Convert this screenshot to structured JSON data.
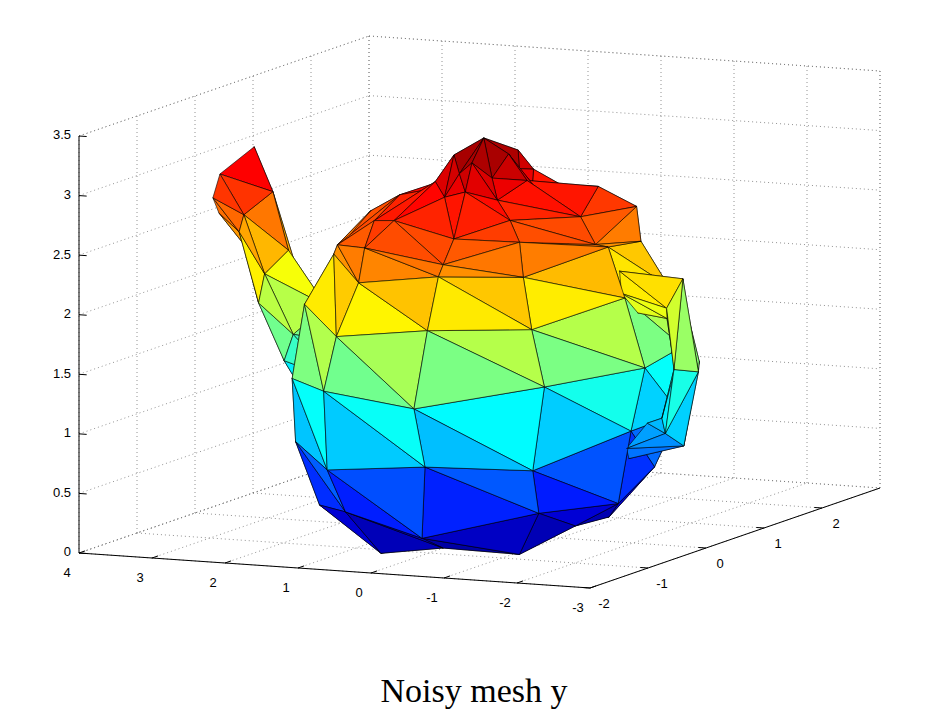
{
  "chart_data": {
    "type": "trisurf",
    "title": "Noisy mesh y",
    "xlim": [
      -3,
      4
    ],
    "ylim": [
      -2,
      3
    ],
    "zlim": [
      0,
      3.5
    ],
    "xticks": [
      -3,
      -2,
      -1,
      0,
      1,
      2,
      3,
      4
    ],
    "yticks": [
      -2,
      -1,
      0,
      1,
      2
    ],
    "zticks": [
      0,
      0.5,
      1,
      1.5,
      2,
      2.5,
      3,
      3.5
    ],
    "grid": true,
    "color_range": [
      0,
      3.32
    ],
    "surfaces": [
      {
        "rings": [
          [
            [
              0.03,
              0.02,
              0.0
            ]
          ],
          [
            [
              1.35,
              0.05,
              0.08
            ],
            [
              1.02,
              0.8,
              0.02
            ],
            [
              0.45,
              1.2,
              0.1
            ],
            [
              -0.38,
              1.3,
              0.0
            ],
            [
              -1.1,
              0.72,
              0.06
            ],
            [
              -1.25,
              -0.05,
              0.12
            ],
            [
              -1.08,
              -0.8,
              0.0
            ],
            [
              -0.35,
              -1.2,
              0.09
            ],
            [
              0.42,
              -1.3,
              0.03
            ],
            [
              1.0,
              -0.72,
              0.0
            ]
          ],
          [
            [
              1.85,
              -0.05,
              0.3
            ],
            [
              1.4,
              1.12,
              0.42
            ],
            [
              0.6,
              1.66,
              0.28
            ],
            [
              -0.52,
              1.78,
              0.38
            ],
            [
              -1.5,
              1.0,
              0.45
            ],
            [
              -1.75,
              0.06,
              0.31
            ],
            [
              -1.52,
              -1.02,
              0.4
            ],
            [
              -0.5,
              -1.75,
              0.27
            ],
            [
              0.62,
              -1.66,
              0.43
            ],
            [
              1.42,
              -1.1,
              0.36
            ]
          ],
          [
            [
              2.1,
              0.04,
              0.9
            ],
            [
              1.62,
              1.25,
              0.8
            ],
            [
              0.68,
              1.9,
              0.92
            ],
            [
              -0.6,
              2.0,
              0.82
            ],
            [
              -1.7,
              1.18,
              0.88
            ],
            [
              -2.02,
              -0.06,
              0.95
            ],
            [
              -1.62,
              -1.25,
              0.8
            ],
            [
              -0.66,
              -1.9,
              0.9
            ],
            [
              0.6,
              -2.0,
              0.84
            ],
            [
              1.7,
              -1.16,
              0.89
            ]
          ],
          [
            [
              2.05,
              -0.04,
              1.5
            ],
            [
              1.74,
              1.2,
              1.4
            ],
            [
              0.62,
              2.05,
              1.48
            ],
            [
              -0.68,
              1.96,
              1.52
            ],
            [
              -1.66,
              1.28,
              1.42
            ],
            [
              -2.14,
              0.03,
              1.47
            ],
            [
              -1.74,
              -1.2,
              1.5
            ],
            [
              -0.62,
              -2.04,
              1.41
            ],
            [
              0.68,
              -1.96,
              1.49
            ],
            [
              1.66,
              -1.27,
              1.44
            ]
          ],
          [
            [
              1.98,
              0.05,
              1.96
            ],
            [
              1.55,
              1.18,
              2.05
            ],
            [
              0.63,
              1.82,
              1.98
            ],
            [
              -0.57,
              1.88,
              2.04
            ],
            [
              -1.6,
              1.12,
              1.95
            ],
            [
              -1.92,
              -0.04,
              2.06
            ],
            [
              -1.55,
              -1.18,
              1.97
            ],
            [
              -0.63,
              -1.82,
              2.03
            ],
            [
              0.57,
              -1.88,
              1.94
            ],
            [
              1.61,
              -1.12,
              2.04
            ]
          ],
          [
            [
              1.7,
              -0.04,
              2.36
            ],
            [
              1.3,
              1.02,
              2.45
            ],
            [
              0.55,
              1.52,
              2.38
            ],
            [
              -0.48,
              1.62,
              2.44
            ],
            [
              -1.37,
              0.93,
              2.35
            ],
            [
              -1.62,
              0.05,
              2.46
            ],
            [
              -1.3,
              -1.01,
              2.37
            ],
            [
              -0.55,
              -1.53,
              2.43
            ],
            [
              0.48,
              -1.61,
              2.35
            ],
            [
              1.36,
              -0.93,
              2.44
            ]
          ],
          [
            [
              1.66,
              0.08,
              2.62
            ],
            [
              1.22,
              1.0,
              2.5
            ],
            [
              0.56,
              1.46,
              2.66
            ],
            [
              -0.42,
              1.58,
              2.52
            ],
            [
              -1.35,
              0.88,
              2.65
            ],
            [
              -1.55,
              -0.08,
              2.5
            ],
            [
              -1.24,
              -1.0,
              2.66
            ],
            [
              -0.56,
              -1.46,
              2.52
            ],
            [
              0.42,
              -1.58,
              2.64
            ],
            [
              1.35,
              -0.88,
              2.51
            ]
          ],
          [
            [
              1.15,
              -0.06,
              2.8
            ],
            [
              1.02,
              0.66,
              2.68
            ],
            [
              0.32,
              1.2,
              2.78
            ],
            [
              -0.42,
              1.1,
              2.66
            ],
            [
              -0.92,
              0.76,
              2.82
            ],
            [
              -1.25,
              0.04,
              2.7
            ],
            [
              -0.92,
              -0.76,
              2.79
            ],
            [
              -0.42,
              -1.1,
              2.67
            ],
            [
              0.32,
              -1.2,
              2.81
            ],
            [
              1.02,
              -0.66,
              2.69
            ]
          ],
          [
            [
              0.6,
              0.03,
              2.88
            ],
            [
              0.4,
              0.36,
              2.98
            ],
            [
              0.2,
              0.48,
              2.86
            ],
            [
              -0.2,
              0.55,
              2.97
            ],
            [
              -0.4,
              0.28,
              2.9
            ],
            [
              -0.58,
              -0.04,
              2.99
            ],
            [
              -0.42,
              -0.35,
              2.87
            ],
            [
              -0.14,
              -0.55,
              2.96
            ],
            [
              0.2,
              -0.48,
              2.89
            ],
            [
              0.47,
              -0.3,
              2.98
            ]
          ],
          [
            [
              0.4,
              0.02,
              3.05
            ],
            [
              0.24,
              0.25,
              3.18
            ],
            [
              0.14,
              0.3,
              3.02
            ],
            [
              -0.14,
              0.36,
              3.16
            ],
            [
              -0.3,
              0.18,
              3.04
            ],
            [
              -0.32,
              -0.03,
              3.2
            ],
            [
              -0.26,
              -0.24,
              3.03
            ],
            [
              -0.08,
              -0.36,
              3.17
            ],
            [
              0.14,
              -0.3,
              3.06
            ],
            [
              0.31,
              -0.18,
              3.19
            ]
          ],
          [
            [
              0.02,
              -0.03,
              3.32
            ]
          ]
        ]
      },
      {
        "rings": [
          [
            [
              1.92,
              0.48,
              1.08
            ],
            [
              1.6,
              0.12,
              1.47
            ],
            [
              1.76,
              -0.4,
              1.28
            ],
            [
              2.03,
              -0.33,
              0.92
            ],
            [
              2.2,
              0.17,
              0.74
            ]
          ],
          [
            [
              2.55,
              0.38,
              1.46
            ],
            [
              2.27,
              0.08,
              1.8
            ],
            [
              2.4,
              -0.32,
              1.62
            ],
            [
              2.58,
              -0.25,
              1.38
            ],
            [
              2.74,
              0.14,
              1.2
            ]
          ],
          [
            [
              2.86,
              0.32,
              2.04
            ],
            [
              2.76,
              0.05,
              2.25
            ],
            [
              2.84,
              -0.26,
              2.1
            ],
            [
              2.97,
              -0.2,
              1.84
            ],
            [
              3.1,
              0.12,
              1.82
            ]
          ],
          [
            [
              3.24,
              0.28,
              2.47
            ],
            [
              3.02,
              0.11,
              2.72
            ],
            [
              3.14,
              -0.24,
              2.58
            ],
            [
              3.26,
              -0.17,
              2.42
            ],
            [
              3.38,
              0.05,
              2.28
            ]
          ],
          [
            [
              3.55,
              0.36,
              2.84
            ],
            [
              3.3,
              0.14,
              3.08
            ],
            [
              3.42,
              -0.3,
              2.92
            ],
            [
              3.58,
              -0.22,
              2.7
            ],
            [
              3.72,
              0.06,
              2.52
            ]
          ]
        ]
      },
      {
        "rings": [
          [
            [
              -1.95,
              0.2,
              2.08
            ],
            [
              -1.8,
              0.02,
              2.27
            ],
            [
              -1.97,
              -0.16,
              2.12
            ],
            [
              -2.09,
              -0.03,
              1.94
            ]
          ],
          [
            [
              -2.52,
              0.21,
              2.06
            ],
            [
              -2.66,
              0.03,
              2.24
            ],
            [
              -2.58,
              -0.15,
              2.02
            ],
            [
              -2.45,
              0.02,
              1.9
            ]
          ],
          [
            [
              -2.78,
              0.16,
              1.53
            ],
            [
              -2.92,
              -0.03,
              1.48
            ],
            [
              -2.72,
              -0.2,
              1.52
            ],
            [
              -2.55,
              0.03,
              1.47
            ]
          ],
          [
            [
              -2.52,
              0.2,
              0.93
            ],
            [
              -2.68,
              0.02,
              0.84
            ],
            [
              -2.57,
              -0.16,
              0.97
            ],
            [
              -2.42,
              -0.03,
              1.07
            ]
          ],
          [
            [
              -2.05,
              0.17,
              0.88
            ],
            [
              -1.92,
              0.03,
              0.7
            ],
            [
              -2.07,
              -0.2,
              0.83
            ],
            [
              -2.18,
              0.02,
              1.01
            ]
          ]
        ]
      }
    ]
  }
}
